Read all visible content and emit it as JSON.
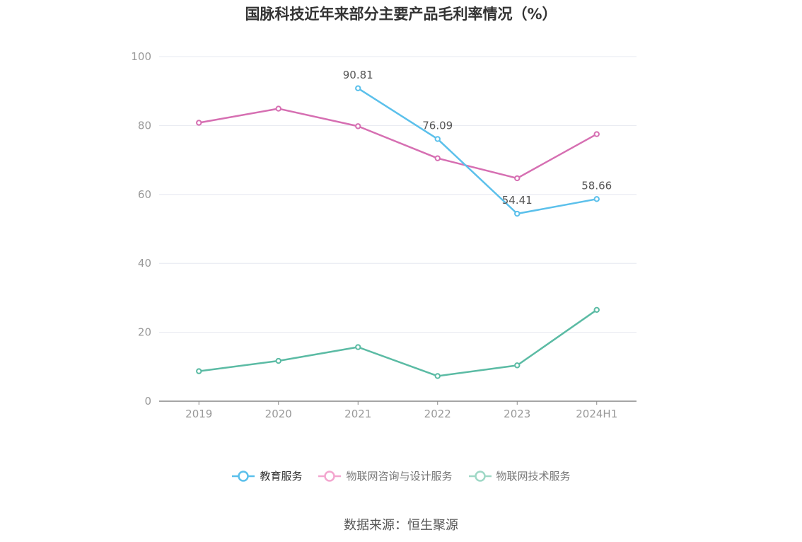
{
  "chart_data": {
    "type": "line",
    "title": "国脉科技近年来部分主要产品毛利率情况（%）",
    "categories": [
      "2019",
      "2020",
      "2021",
      "2022",
      "2023",
      "2024H1"
    ],
    "ylim": [
      0,
      100
    ],
    "yticks": [
      0,
      20,
      40,
      60,
      80,
      100
    ],
    "grid": true,
    "legend_position": "bottom",
    "series": [
      {
        "name": "教育服务",
        "color": "#5bc0eb",
        "values": [
          null,
          null,
          90.81,
          76.09,
          54.41,
          58.66
        ],
        "labels": [
          "",
          "",
          "90.81",
          "76.09",
          "54.41",
          "58.66"
        ]
      },
      {
        "name": "物联网咨询与设计服务",
        "color": "#d66fb2",
        "values": [
          80.8,
          84.9,
          79.8,
          70.5,
          64.7,
          77.5
        ],
        "labels": []
      },
      {
        "name": "物联网技术服务",
        "color": "#5bbba4",
        "values": [
          8.7,
          11.7,
          15.7,
          7.3,
          10.4,
          26.5
        ],
        "labels": []
      }
    ]
  },
  "legend": {
    "items": [
      {
        "label": "教育服务",
        "color": "#5bc0eb",
        "active": true
      },
      {
        "label": "物联网咨询与设计服务",
        "color": "#f3a6cf",
        "active": false
      },
      {
        "label": "物联网技术服务",
        "color": "#9fd8c6",
        "active": false
      }
    ]
  },
  "source": "数据来源：恒生聚源"
}
